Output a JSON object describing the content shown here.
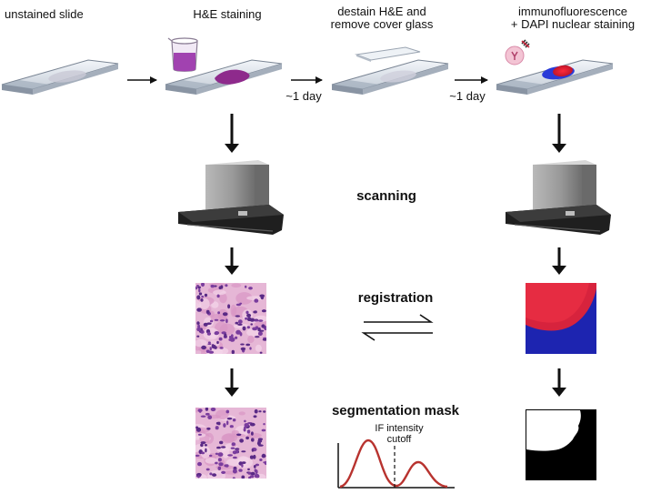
{
  "steps": {
    "unstained": "unstained slide",
    "he": "H&E staining",
    "destain_line1": "destain H&E and",
    "destain_line2": "remove cover glass",
    "if_line1": "immunofluorescence",
    "if_line2": "+ DAPI nuclear staining"
  },
  "delays": {
    "first": "~1 day",
    "second": "~1 day"
  },
  "stages": {
    "scanning": "scanning",
    "registration": "registration",
    "segmentation": "segmentation mask"
  },
  "cutoff": {
    "line1": "IF intensity",
    "line2": "cutoff"
  },
  "colors": {
    "he_stain": "#8e2a8c",
    "if_red": "#e8283c",
    "if_blue": "#1f2fd0",
    "curve": "#b8332f",
    "scanner": "#8f8f8f",
    "arrow": "#111111"
  },
  "icons": {
    "stain_container": "beaker-icon",
    "antibody": "antibody-icon",
    "scanner": "scanner-icon"
  }
}
